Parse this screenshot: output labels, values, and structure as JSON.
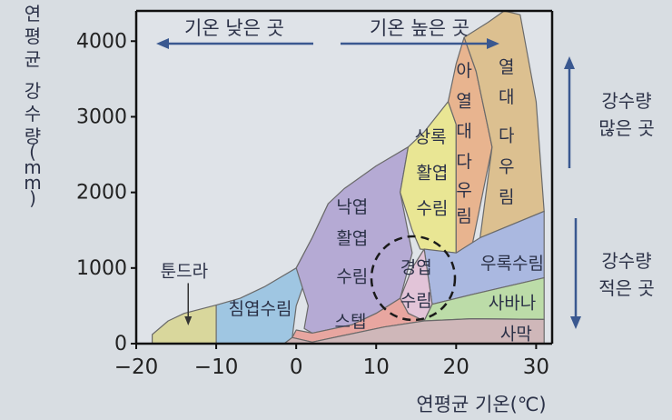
{
  "chart_data": {
    "type": "area",
    "title": "",
    "xlabel": "연평균 기온(℃)",
    "ylabel": "연평균 강수량(mm)",
    "xlim": [
      -20,
      32
    ],
    "ylim": [
      0,
      4400
    ],
    "x_ticks": [
      "−20",
      "−10",
      "0",
      "10",
      "20",
      "30"
    ],
    "y_ticks": [
      "0",
      "1000",
      "2000",
      "3000",
      "4000"
    ],
    "grid": false,
    "temperature_arrows": {
      "left": "기온 낮은 곳",
      "right": "기온 높은 곳"
    },
    "precipitation_arrows": {
      "upper": [
        "강수량",
        "많은 곳"
      ],
      "lower": [
        "강수량",
        "적은 곳"
      ]
    },
    "regions": [
      {
        "name": "툰드라",
        "color": "#d9d79c",
        "points": [
          [
            -18,
            0
          ],
          [
            -18,
            120
          ],
          [
            -16,
            300
          ],
          [
            -14,
            400
          ],
          [
            -10,
            510
          ],
          [
            -10,
            0
          ]
        ]
      },
      {
        "name": "침엽수림",
        "color": "#9fc6e2",
        "points": [
          [
            -10,
            0
          ],
          [
            -10,
            510
          ],
          [
            -7,
            600
          ],
          [
            -4,
            750
          ],
          [
            0,
            1000
          ],
          [
            2,
            1400
          ],
          [
            4,
            1850
          ],
          [
            2,
            1100
          ],
          [
            0,
            500
          ],
          [
            -0.5,
            80
          ],
          [
            -1.5,
            0
          ]
        ]
      },
      {
        "name": "낙엽 활엽 수림",
        "color": "#b5aad4",
        "points": [
          [
            0,
            1000
          ],
          [
            2,
            1400
          ],
          [
            4,
            1850
          ],
          [
            6,
            2050
          ],
          [
            10,
            2350
          ],
          [
            14,
            2600
          ],
          [
            13,
            2000
          ],
          [
            14.5,
            1200
          ],
          [
            13,
            600
          ],
          [
            10,
            400
          ],
          [
            7,
            250
          ],
          [
            2,
            140
          ],
          [
            1,
            200
          ],
          [
            1.5,
            500
          ]
        ]
      },
      {
        "name": "상록 활엽 수림",
        "color": "#e9e694",
        "points": [
          [
            14,
            2600
          ],
          [
            16,
            2800
          ],
          [
            19,
            3200
          ],
          [
            20,
            2900
          ],
          [
            20,
            1200
          ],
          [
            15.5,
            1250
          ],
          [
            14.5,
            1500
          ],
          [
            13,
            2000
          ]
        ]
      },
      {
        "name": "아열대 다우림",
        "color": "#e8b48f",
        "points": [
          [
            19,
            3200
          ],
          [
            20,
            3700
          ],
          [
            21,
            4050
          ],
          [
            22.5,
            3600
          ],
          [
            24.5,
            2600
          ],
          [
            22,
            1300
          ],
          [
            20,
            1200
          ],
          [
            20,
            2900
          ]
        ]
      },
      {
        "name": "열대 다우림",
        "color": "#dcc090",
        "points": [
          [
            21,
            4050
          ],
          [
            24,
            4250
          ],
          [
            26,
            4400
          ],
          [
            28,
            4350
          ],
          [
            30,
            3200
          ],
          [
            31,
            1750
          ],
          [
            23,
            1400
          ],
          [
            24.5,
            2600
          ],
          [
            22.5,
            3600
          ]
        ]
      },
      {
        "name": "우록수림",
        "color": "#aab8e0",
        "points": [
          [
            16,
            1250
          ],
          [
            20,
            1200
          ],
          [
            23,
            1400
          ],
          [
            31,
            1750
          ],
          [
            31,
            870
          ],
          [
            22,
            650
          ],
          [
            17,
            520
          ]
        ]
      },
      {
        "name": "경엽 수림",
        "color": "#e2c4d8",
        "points": [
          [
            13,
            600
          ],
          [
            14.5,
            1000
          ],
          [
            16,
            1250
          ],
          [
            17,
            520
          ],
          [
            16,
            300
          ],
          [
            14,
            400
          ]
        ]
      },
      {
        "name": "사바나",
        "color": "#bcdca8",
        "points": [
          [
            16,
            300
          ],
          [
            17,
            520
          ],
          [
            22,
            650
          ],
          [
            31,
            870
          ],
          [
            31,
            320
          ],
          [
            22,
            330
          ]
        ]
      },
      {
        "name": "스텝",
        "color": "#e8a6a0",
        "points": [
          [
            2,
            140
          ],
          [
            7,
            250
          ],
          [
            10,
            400
          ],
          [
            13,
            600
          ],
          [
            14,
            400
          ],
          [
            16,
            300
          ],
          [
            11,
            220
          ],
          [
            2,
            20
          ],
          [
            -0.5,
            80
          ],
          [
            0,
            180
          ]
        ]
      },
      {
        "name": "사막",
        "color": "#cfb7b9",
        "points": [
          [
            -1.5,
            0
          ],
          [
            -0.5,
            80
          ],
          [
            2,
            20
          ],
          [
            11,
            220
          ],
          [
            16,
            300
          ],
          [
            22,
            330
          ],
          [
            31,
            320
          ],
          [
            31,
            0
          ]
        ]
      }
    ],
    "region_labels": [
      {
        "text": "툰드라",
        "x": -14,
        "y": 950
      },
      {
        "text": "침엽수림",
        "x": -4.5,
        "y": 450
      },
      {
        "text": "낙엽",
        "x": 7,
        "y": 1800
      },
      {
        "text": "활엽",
        "x": 7,
        "y": 1380
      },
      {
        "text": "수림",
        "x": 7,
        "y": 880
      },
      {
        "text": "상록",
        "x": 16.8,
        "y": 2720
      },
      {
        "text": "활엽",
        "x": 17,
        "y": 2250
      },
      {
        "text": "수림",
        "x": 17,
        "y": 1780
      },
      {
        "text": "아",
        "x": 21,
        "y": 3600
      },
      {
        "text": "열",
        "x": 21,
        "y": 3200
      },
      {
        "text": "대",
        "x": 21,
        "y": 2800
      },
      {
        "text": "다",
        "x": 21,
        "y": 2400
      },
      {
        "text": "우",
        "x": 21,
        "y": 2020
      },
      {
        "text": "림",
        "x": 21,
        "y": 1680
      },
      {
        "text": "열",
        "x": 26.3,
        "y": 3650
      },
      {
        "text": "대",
        "x": 26.3,
        "y": 3250
      },
      {
        "text": "다",
        "x": 26.3,
        "y": 2740
      },
      {
        "text": "우",
        "x": 26.3,
        "y": 2330
      },
      {
        "text": "림",
        "x": 26.3,
        "y": 1930
      },
      {
        "text": "우록수림",
        "x": 27,
        "y": 1050
      },
      {
        "text": "경엽",
        "x": 15,
        "y": 1000
      },
      {
        "text": "수림",
        "x": 15,
        "y": 560
      },
      {
        "text": "사바나",
        "x": 27,
        "y": 530
      },
      {
        "text": "스텝",
        "x": 6.8,
        "y": 280
      },
      {
        "text": "사막",
        "x": 27.5,
        "y": 120
      }
    ]
  }
}
